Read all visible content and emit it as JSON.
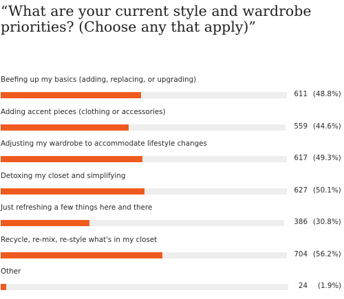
{
  "chart_data": {
    "type": "bar",
    "title": "“What are your current style and wardrobe priorities? (Choose any that apply)”",
    "categories": [
      "Beefing up my basics (adding, replacing, or upgrading)",
      "Adding accent pieces (clothing or accessories)",
      "Adjusting my wardrobe to accommodate lifestyle changes",
      "Detoxing my closet and simplifying",
      "Just refreshing a few things here and there",
      "Recycle, re-mix, re-style what's in my closet",
      "Other"
    ],
    "values": [
      611,
      559,
      617,
      627,
      386,
      704,
      24
    ],
    "percent_labels": [
      "(48.8%)",
      "(44.6%)",
      "(49.3%)",
      "(50.1%)",
      "(30.8%)",
      "(56.2%)",
      "(1.9%)"
    ],
    "percent_values": [
      48.8,
      44.6,
      49.3,
      50.1,
      30.8,
      56.2,
      1.9
    ],
    "colors": {
      "bar": "#ef5a1f",
      "track": "#eeeeee",
      "text": "#2a2a2a"
    },
    "grid": false,
    "legend": "none"
  }
}
